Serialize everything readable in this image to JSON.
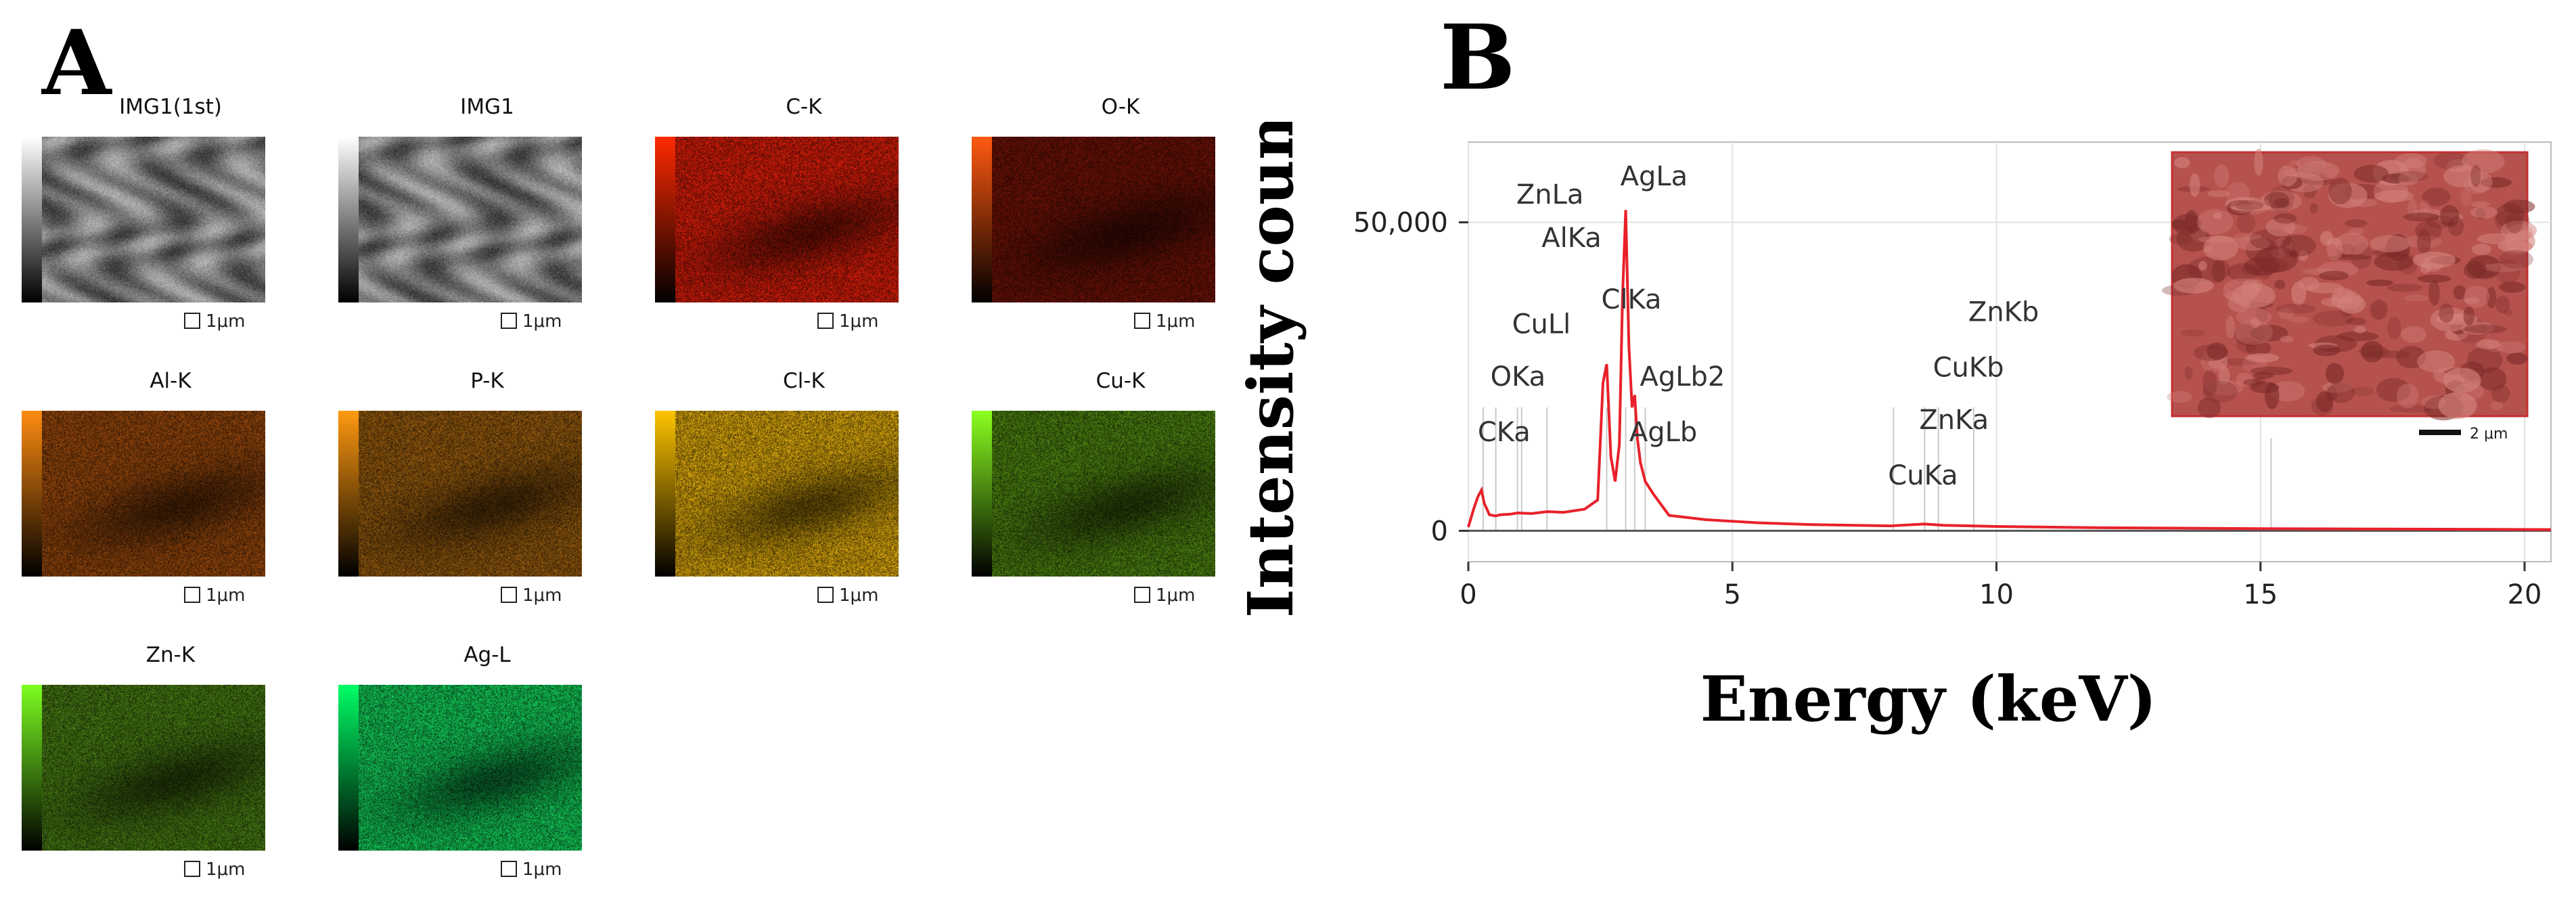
{
  "panels": {
    "a_label": "A",
    "b_label": "B"
  },
  "tiles": [
    {
      "title": "IMG1(1st)",
      "scale": "1μm",
      "bar_top": "#ffffff",
      "bar_bottom": "#000000",
      "tint": "#9a9a9a",
      "kind": "sem"
    },
    {
      "title": "IMG1",
      "scale": "1μm",
      "bar_top": "#ffffff",
      "bar_bottom": "#000000",
      "tint": "#9a9a9a",
      "kind": "sem"
    },
    {
      "title": "C-K",
      "scale": "1μm",
      "bar_top": "#ff2a00",
      "bar_bottom": "#000000",
      "tint": "#b21808",
      "kind": "map"
    },
    {
      "title": "O-K",
      "scale": "1μm",
      "bar_top": "#ff5a10",
      "bar_bottom": "#000000",
      "tint": "#5a0f06",
      "kind": "map"
    },
    {
      "title": "Al-K",
      "scale": "1μm",
      "bar_top": "#ff8c10",
      "bar_bottom": "#000000",
      "tint": "#7a3a0a",
      "kind": "map"
    },
    {
      "title": "P-K",
      "scale": "1μm",
      "bar_top": "#ff9a10",
      "bar_bottom": "#000000",
      "tint": "#7a4a0c",
      "kind": "map"
    },
    {
      "title": "Cl-K",
      "scale": "1μm",
      "bar_top": "#ffc400",
      "bar_bottom": "#000000",
      "tint": "#b48a0a",
      "kind": "map"
    },
    {
      "title": "Cu-K",
      "scale": "1μm",
      "bar_top": "#8cff20",
      "bar_bottom": "#000000",
      "tint": "#3f6a0e",
      "kind": "map"
    },
    {
      "title": "Zn-K",
      "scale": "1μm",
      "bar_top": "#7cff20",
      "bar_bottom": "#000000",
      "tint": "#3a6410",
      "kind": "map"
    },
    {
      "title": "Ag-L",
      "scale": "1μm",
      "bar_top": "#00ff66",
      "bar_bottom": "#000000",
      "tint": "#10a648",
      "kind": "map"
    }
  ],
  "chart_data": {
    "type": "line",
    "xlabel": "Energy (keV)",
    "ylabel": "Intensity count",
    "xlim": [
      0,
      20.5
    ],
    "ylim": [
      -5000,
      63000
    ],
    "x_ticks": [
      0,
      5,
      10,
      15,
      20
    ],
    "x_tick_labels": [
      "0",
      "5",
      "10",
      "15",
      "20"
    ],
    "y_ticks": [
      0,
      50000
    ],
    "y_tick_labels": [
      "0",
      "50,000"
    ],
    "grid": true,
    "line_color": "#e8212b",
    "series": [
      {
        "x": [
          0,
          0.1,
          0.18,
          0.25,
          0.3,
          0.4,
          0.52,
          0.6,
          0.8,
          0.93,
          1.2,
          1.49,
          1.8,
          2.2,
          2.45,
          2.55,
          2.62,
          2.7,
          2.78,
          2.86,
          2.92,
          2.98,
          3.04,
          3.1,
          3.15,
          3.2,
          3.26,
          3.35,
          3.5,
          3.8,
          4.5,
          5.5,
          6.5,
          8.0,
          8.64,
          9.0,
          10.0,
          12.0,
          15.0,
          17.0,
          19.0,
          20.5
        ],
        "y": [
          600,
          3500,
          5500,
          6600,
          4500,
          2600,
          2400,
          2600,
          2700,
          2900,
          2800,
          3100,
          3000,
          3500,
          5000,
          24000,
          27000,
          12000,
          8000,
          14000,
          38000,
          52000,
          30000,
          20000,
          22000,
          15000,
          11000,
          8000,
          6000,
          2500,
          1800,
          1300,
          1000,
          800,
          1100,
          900,
          700,
          500,
          350,
          300,
          250,
          200
        ]
      }
    ],
    "peak_labels": [
      {
        "label": "ZnLa",
        "x": 1.01,
        "y": 53000
      },
      {
        "label": "AlKa",
        "x": 1.49,
        "y": 46000
      },
      {
        "label": "CuLl",
        "x": 0.93,
        "y": 32000
      },
      {
        "label": "OKa",
        "x": 0.52,
        "y": 23500
      },
      {
        "label": "CKa",
        "x": 0.28,
        "y": 14500
      },
      {
        "label": "AgLa",
        "x": 2.98,
        "y": 56000
      },
      {
        "label": "ClKa",
        "x": 2.62,
        "y": 36000
      },
      {
        "label": "AgLb2",
        "x": 3.35,
        "y": 23500
      },
      {
        "label": "AgLb",
        "x": 3.15,
        "y": 14500
      },
      {
        "label": "ZnKb",
        "x": 9.57,
        "y": 34000
      },
      {
        "label": "CuKb",
        "x": 8.9,
        "y": 25000
      },
      {
        "label": "ZnKa",
        "x": 8.64,
        "y": 16500
      },
      {
        "label": "CuKa",
        "x": 8.05,
        "y": 7500
      }
    ],
    "peak_lines": [
      0.28,
      0.52,
      0.93,
      1.01,
      1.49,
      2.62,
      2.98,
      3.15,
      3.35,
      8.05,
      8.64,
      8.9,
      9.57,
      15.2
    ],
    "inset": {
      "scale": "2 μm",
      "tint": "#b5524e"
    }
  }
}
